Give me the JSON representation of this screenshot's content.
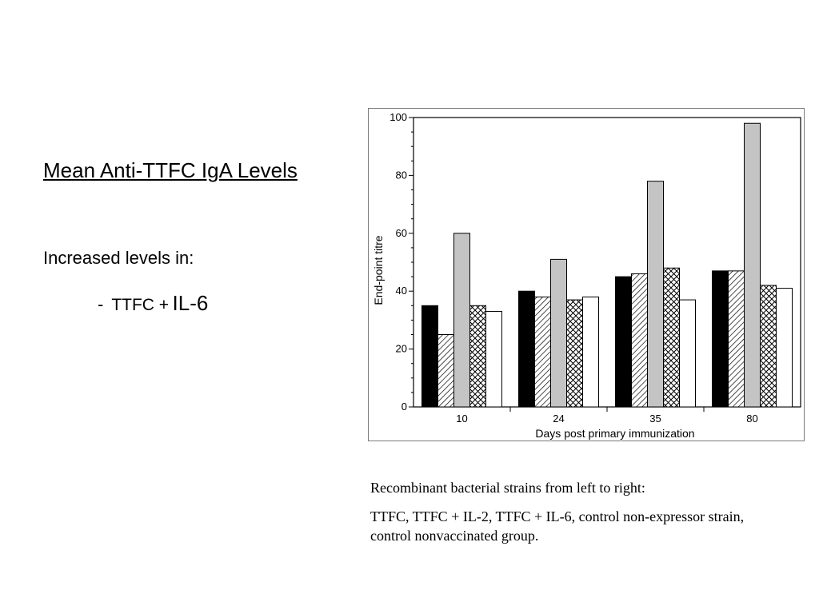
{
  "slide": {
    "title": "Mean Anti-TTFC IgA Levels",
    "increased": "Increased levels in:",
    "bullet_dash": "-",
    "bullet_a": "TTFC +",
    "bullet_b": "IL-6"
  },
  "caption": {
    "line1": "Recombinant bacterial strains from left to right:",
    "line2": "TTFC, TTFC + IL-2, TTFC + IL-6, control non-expressor strain, control nonvaccinated group."
  },
  "chart_data": {
    "type": "bar",
    "title": "",
    "xlabel": "Days post primary immunization",
    "ylabel": "End-point titre",
    "ylim": [
      0,
      100
    ],
    "yticks": [
      0,
      20,
      40,
      60,
      80,
      100
    ],
    "categories": [
      "10",
      "24",
      "35",
      "80"
    ],
    "grid": false,
    "series": [
      {
        "values": [
          35,
          40,
          45,
          47
        ],
        "fill": "#000000"
      },
      {
        "values": [
          25,
          38,
          46,
          47
        ],
        "fill": "hatch"
      },
      {
        "values": [
          60,
          51,
          78,
          98
        ],
        "fill": "#c4c4c4"
      },
      {
        "values": [
          35,
          37,
          48,
          42
        ],
        "fill": "crosshatch"
      },
      {
        "values": [
          33,
          38,
          37,
          41
        ],
        "fill": "#ffffff"
      }
    ]
  }
}
